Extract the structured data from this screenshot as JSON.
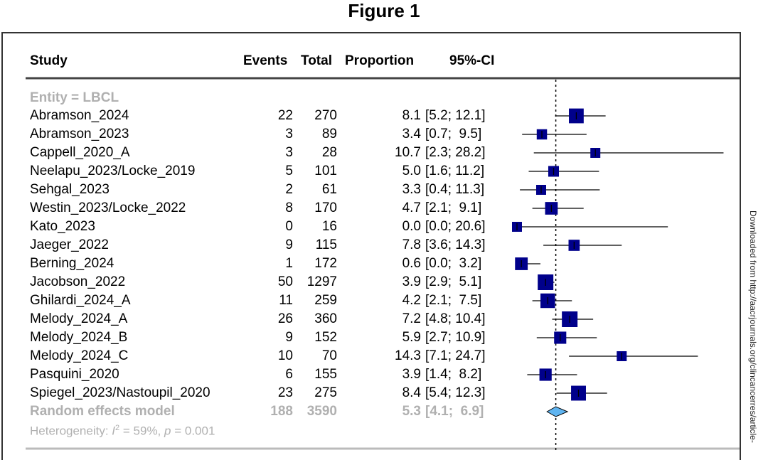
{
  "title": "Figure 1",
  "side_note": "Downloaded from http://aacrjournals.org/clincancerres/article-",
  "chart_data": {
    "type": "forest",
    "headers": {
      "study": "Study",
      "events": "Events",
      "total": "Total",
      "proportion": "Proportion",
      "ci": "95%-CI"
    },
    "subgroup": "Entity = LBCL",
    "studies": [
      {
        "study": "Abramson_2024",
        "events": "22",
        "total": "270",
        "prop": 8.1,
        "lo": 5.2,
        "hi": 12.1,
        "prop_txt": "8.1",
        "ci_txt": "[5.2; 12.1]"
      },
      {
        "study": "Abramson_2023",
        "events": "3",
        "total": "89",
        "prop": 3.4,
        "lo": 0.7,
        "hi": 9.5,
        "prop_txt": "3.4",
        "ci_txt": "[0.7;  9.5]"
      },
      {
        "study": "Cappell_2020_A",
        "events": "3",
        "total": "28",
        "prop": 10.7,
        "lo": 2.3,
        "hi": 28.2,
        "prop_txt": "10.7",
        "ci_txt": "[2.3; 28.2]"
      },
      {
        "study": "Neelapu_2023/Locke_2019",
        "events": "5",
        "total": "101",
        "prop": 5.0,
        "lo": 1.6,
        "hi": 11.2,
        "prop_txt": "5.0",
        "ci_txt": "[1.6; 11.2]"
      },
      {
        "study": "Sehgal_2023",
        "events": "2",
        "total": "61",
        "prop": 3.3,
        "lo": 0.4,
        "hi": 11.3,
        "prop_txt": "3.3",
        "ci_txt": "[0.4; 11.3]"
      },
      {
        "study": "Westin_2023/Locke_2022",
        "events": "8",
        "total": "170",
        "prop": 4.7,
        "lo": 2.1,
        "hi": 9.1,
        "prop_txt": "4.7",
        "ci_txt": "[2.1;  9.1]"
      },
      {
        "study": "Kato_2023",
        "events": "0",
        "total": "16",
        "prop": 0.0,
        "lo": 0.0,
        "hi": 20.6,
        "prop_txt": "0.0",
        "ci_txt": "[0.0; 20.6]"
      },
      {
        "study": "Jaeger_2022",
        "events": "9",
        "total": "115",
        "prop": 7.8,
        "lo": 3.6,
        "hi": 14.3,
        "prop_txt": "7.8",
        "ci_txt": "[3.6; 14.3]"
      },
      {
        "study": "Berning_2024",
        "events": "1",
        "total": "172",
        "prop": 0.6,
        "lo": 0.0,
        "hi": 3.2,
        "prop_txt": "0.6",
        "ci_txt": "[0.0;  3.2]"
      },
      {
        "study": "Jacobson_2022",
        "events": "50",
        "total": "1297",
        "prop": 3.9,
        "lo": 2.9,
        "hi": 5.1,
        "prop_txt": "3.9",
        "ci_txt": "[2.9;  5.1]"
      },
      {
        "study": "Ghilardi_2024_A",
        "events": "11",
        "total": "259",
        "prop": 4.2,
        "lo": 2.1,
        "hi": 7.5,
        "prop_txt": "4.2",
        "ci_txt": "[2.1;  7.5]"
      },
      {
        "study": "Melody_2024_A",
        "events": "26",
        "total": "360",
        "prop": 7.2,
        "lo": 4.8,
        "hi": 10.4,
        "prop_txt": "7.2",
        "ci_txt": "[4.8; 10.4]"
      },
      {
        "study": "Melody_2024_B",
        "events": "9",
        "total": "152",
        "prop": 5.9,
        "lo": 2.7,
        "hi": 10.9,
        "prop_txt": "5.9",
        "ci_txt": "[2.7; 10.9]"
      },
      {
        "study": "Melody_2024_C",
        "events": "10",
        "total": "70",
        "prop": 14.3,
        "lo": 7.1,
        "hi": 24.7,
        "prop_txt": "14.3",
        "ci_txt": "[7.1; 24.7]"
      },
      {
        "study": "Pasquini_2020",
        "events": "6",
        "total": "155",
        "prop": 3.9,
        "lo": 1.4,
        "hi": 8.2,
        "prop_txt": "3.9",
        "ci_txt": "[1.4;  8.2]"
      },
      {
        "study": "Spiegel_2023/Nastoupil_2020",
        "events": "23",
        "total": "275",
        "prop": 8.4,
        "lo": 5.4,
        "hi": 12.3,
        "prop_txt": "8.4",
        "ci_txt": "[5.4; 12.3]"
      }
    ],
    "pooled": {
      "label": "Random effects model",
      "events": "188",
      "total": "3590",
      "prop": 5.3,
      "lo": 4.1,
      "hi": 6.9,
      "prop_txt": "5.3",
      "ci_txt": "[4.1;  6.9]"
    },
    "heterogeneity": {
      "prefix": "Heterogeneity: ",
      "i2_label": "I",
      "sup": "2",
      "i2_value": " = 59%, ",
      "p_label": "p",
      "p_value": " = 0.001"
    },
    "reference_line": 5.3,
    "colors": {
      "square": "#00008B",
      "diamond": "#5FB4F0",
      "grey": "#b0b0b0"
    }
  }
}
